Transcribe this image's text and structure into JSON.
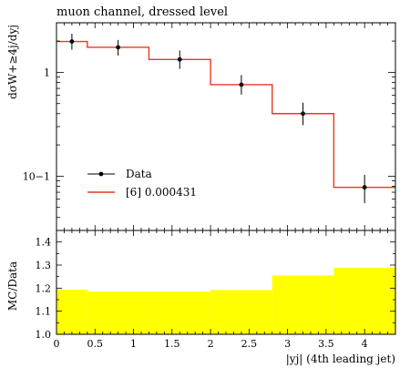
{
  "title": "muon channel, dressed level",
  "chart_data": [
    {
      "type": "line",
      "panel": "main",
      "ylabel": "dσW+≥4j/dyj",
      "yscale": "log",
      "xlim": [
        0,
        4.4
      ],
      "ylim": [
        0.03,
        3.0
      ],
      "ytick_labels": [
        {
          "value": 1,
          "label": "1"
        },
        {
          "value": 0.1,
          "label": "10−1"
        }
      ],
      "legend_position": "center-left",
      "data_series": {
        "name": "Data",
        "color": "#000000",
        "points": [
          {
            "x": 0.2,
            "y": 1.98,
            "err_lo": 1.65,
            "err_hi": 2.35
          },
          {
            "x": 0.8,
            "y": 1.74,
            "err_lo": 1.45,
            "err_hi": 2.05
          },
          {
            "x": 1.6,
            "y": 1.33,
            "err_lo": 1.08,
            "err_hi": 1.62
          },
          {
            "x": 2.4,
            "y": 0.76,
            "err_lo": 0.61,
            "err_hi": 0.94
          },
          {
            "x": 3.2,
            "y": 0.4,
            "err_lo": 0.31,
            "err_hi": 0.51
          },
          {
            "x": 4.0,
            "y": 0.078,
            "err_lo": 0.055,
            "err_hi": 0.103
          }
        ]
      },
      "mc_series": {
        "name": "[6] 0.000431",
        "color": "#e8391d",
        "bins": [
          {
            "lo": 0.0,
            "hi": 0.4,
            "y": 1.98
          },
          {
            "lo": 0.4,
            "hi": 1.2,
            "y": 1.74
          },
          {
            "lo": 1.2,
            "hi": 2.0,
            "y": 1.33
          },
          {
            "lo": 2.0,
            "hi": 2.8,
            "y": 0.76
          },
          {
            "lo": 2.8,
            "hi": 3.6,
            "y": 0.4
          },
          {
            "lo": 3.6,
            "hi": 4.4,
            "y": 0.078
          }
        ]
      }
    },
    {
      "type": "area",
      "panel": "ratio",
      "ylabel": "MC/Data",
      "xlabel": "|yj| (4th leading jet)",
      "xlim": [
        0,
        4.4
      ],
      "ylim": [
        1.0,
        1.45
      ],
      "xticks": [
        0,
        0.5,
        1,
        1.5,
        2,
        2.5,
        3,
        3.5,
        4
      ],
      "xtick_labels": [
        "0",
        "0.5",
        "1",
        "1.5",
        "2",
        "2.5",
        "3",
        "3.5",
        "4"
      ],
      "yticks": [
        1.0,
        1.1,
        1.2,
        1.3,
        1.4
      ],
      "ytick_labels": [
        "1.0",
        "1.1",
        "1.2",
        "1.3",
        "1.4"
      ],
      "band_color": "#ffff00",
      "band": [
        {
          "lo": 0.0,
          "hi": 0.4,
          "y": 1.193
        },
        {
          "lo": 0.4,
          "hi": 1.2,
          "y": 1.185
        },
        {
          "lo": 1.2,
          "hi": 2.0,
          "y": 1.185
        },
        {
          "lo": 2.0,
          "hi": 2.8,
          "y": 1.192
        },
        {
          "lo": 2.8,
          "hi": 3.6,
          "y": 1.255
        },
        {
          "lo": 3.6,
          "hi": 4.4,
          "y": 1.288
        }
      ]
    }
  ]
}
